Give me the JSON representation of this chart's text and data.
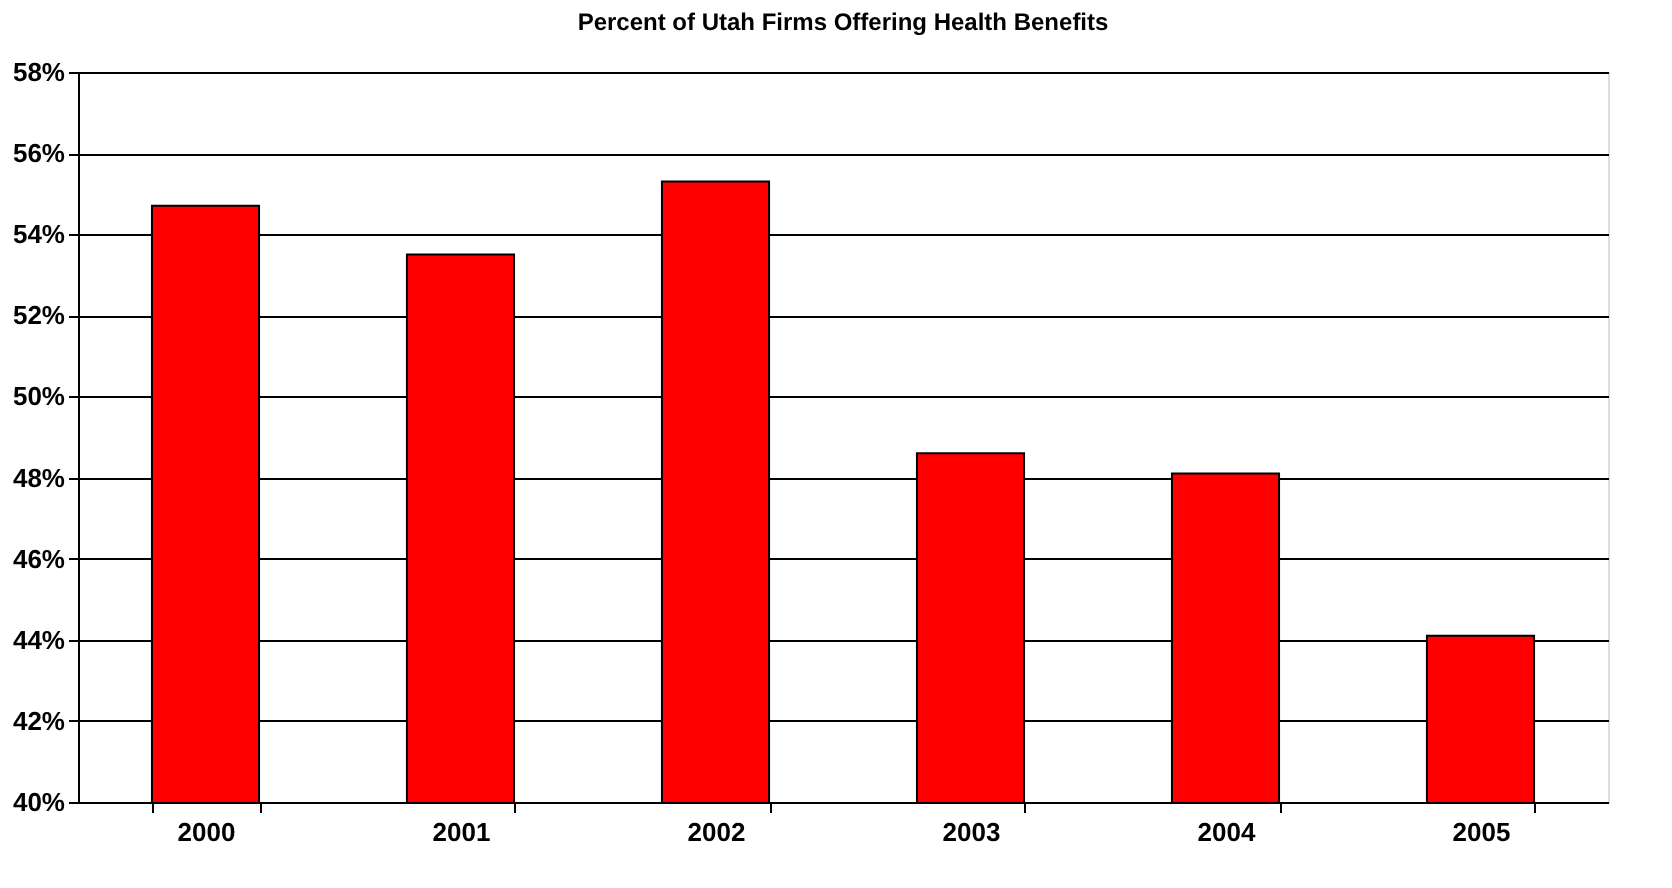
{
  "chart_data": {
    "type": "bar",
    "title": "Percent of Utah Firms Offering Health Benefits",
    "categories": [
      "2000",
      "2001",
      "2002",
      "2003",
      "2004",
      "2005"
    ],
    "values": [
      54.7,
      53.5,
      55.3,
      48.6,
      48.1,
      44.1
    ],
    "color": "#ff0000",
    "ylim": [
      40,
      58
    ],
    "yticks": [
      {
        "value": 40,
        "label": "40%"
      },
      {
        "value": 42,
        "label": "42%"
      },
      {
        "value": 44,
        "label": "44%"
      },
      {
        "value": 46,
        "label": "46%"
      },
      {
        "value": 48,
        "label": "48%"
      },
      {
        "value": 50,
        "label": "50%"
      },
      {
        "value": 52,
        "label": "52%"
      },
      {
        "value": 54,
        "label": "54%"
      },
      {
        "value": 56,
        "label": "56%"
      },
      {
        "value": 58,
        "label": "58%"
      }
    ],
    "grid": "y"
  }
}
